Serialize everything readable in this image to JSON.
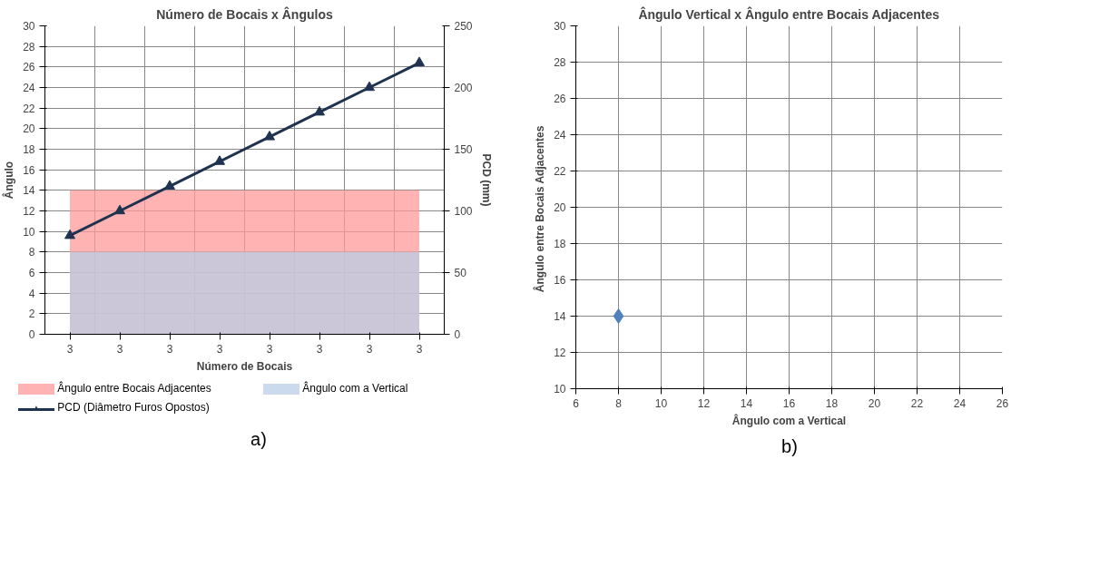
{
  "chart_data": [
    {
      "type": "area",
      "title": "Número de Bocais x Ângulos",
      "xlabel": "Número de Bocais",
      "ylabel": "Ângulo",
      "y2label": "PCD (mm)",
      "categories": [
        "3",
        "3",
        "3",
        "3",
        "3",
        "3",
        "3",
        "3"
      ],
      "series": [
        {
          "name": "Ângulo entre Bocais Adjacentes",
          "color": "#ff9a9a",
          "values": [
            14,
            14,
            14,
            14,
            14,
            14,
            14,
            14
          ]
        },
        {
          "name": "Ângulo com a Vertical",
          "color": "#b9cde5",
          "values": [
            8,
            8,
            8,
            8,
            8,
            8,
            8,
            8
          ]
        },
        {
          "name": "PCD (Diâmetro Furos Opostos)",
          "type": "line",
          "axis": "y2",
          "color": "#1f3350",
          "marker": "triangle",
          "values": [
            80,
            100,
            120,
            140,
            160,
            180,
            200,
            220
          ]
        }
      ],
      "ylim": [
        0,
        30
      ],
      "yticks": [
        0,
        2,
        4,
        6,
        8,
        10,
        12,
        14,
        16,
        18,
        20,
        22,
        24,
        26,
        28,
        30
      ],
      "y2lim": [
        0,
        250
      ],
      "y2ticks": [
        0,
        50,
        100,
        150,
        200,
        250
      ],
      "grid": true,
      "legend": "bottom",
      "annotations": [
        "a)"
      ]
    },
    {
      "type": "scatter",
      "title": "Ângulo Vertical x Ângulo entre Bocais Adjacentes",
      "xlabel": "Ângulo com a Vertical",
      "ylabel": "Ângulo entre Bocais  Adjacentes",
      "x": [
        8
      ],
      "values": [
        14
      ],
      "color": "#4f81bd",
      "marker": "diamond",
      "xlim": [
        6,
        26
      ],
      "xticks": [
        6,
        8,
        10,
        12,
        14,
        16,
        18,
        20,
        22,
        24,
        26
      ],
      "ylim": [
        10,
        30
      ],
      "yticks": [
        10,
        12,
        14,
        16,
        18,
        20,
        22,
        24,
        26,
        28,
        30
      ],
      "grid": true,
      "annotations": [
        "b)"
      ]
    }
  ]
}
